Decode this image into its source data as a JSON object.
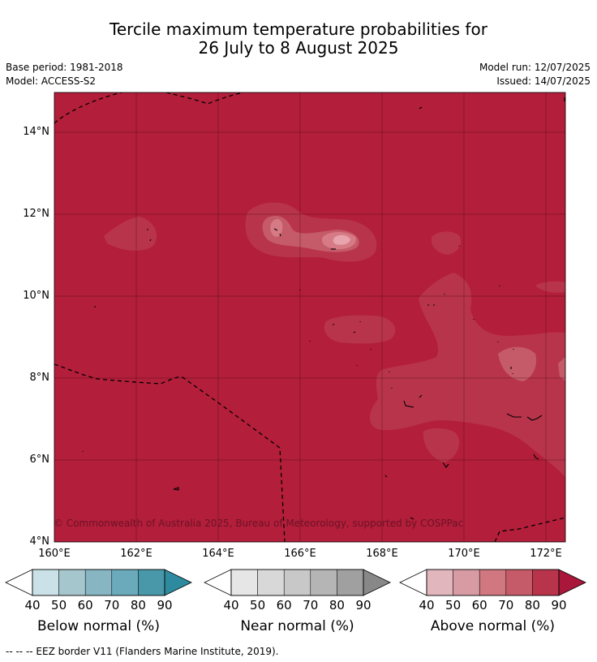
{
  "header": {
    "title_line1": "Tercile maximum temperature probabilities for",
    "title_line2": "26 July to 8 August 2025",
    "base_period": "Base period: 1981-2018",
    "model": "Model: ACCESS-S2",
    "model_run": "Model run: 12/07/2025",
    "issued": "Issued: 14/07/2025"
  },
  "map": {
    "lat_ticks": [
      "14°N",
      "12°N",
      "10°N",
      "8°N",
      "6°N",
      "4°N"
    ],
    "lon_ticks": [
      "160°E",
      "162°E",
      "164°E",
      "166°E",
      "168°E",
      "170°E",
      "172°E"
    ],
    "copyright": "© Commonwealth of Australia 2025, Bureau of Meteorology, supported by COSPPac",
    "colors": {
      "background_90plus": "#b31e3a",
      "band_80_90": "#b8344b",
      "band_70_80": "#c55a68",
      "band_60_70": "#d67b86",
      "band_50_60": "#e7a4ac"
    }
  },
  "colorbars": [
    {
      "title": "Below normal (%)",
      "ticks": [
        "40",
        "50",
        "60",
        "70",
        "80",
        "90"
      ],
      "colors": [
        "#ffffff",
        "#c9e1e7",
        "#a6c6cd",
        "#87b5c1",
        "#6aaabb",
        "#4898aa",
        "#2e8a9e"
      ]
    },
    {
      "title": "Near normal (%)",
      "ticks": [
        "40",
        "50",
        "60",
        "70",
        "80",
        "90"
      ],
      "colors": [
        "#ffffff",
        "#e6e6e6",
        "#d8d8d8",
        "#c8c8c8",
        "#b5b5b5",
        "#a0a0a0",
        "#888888"
      ]
    },
    {
      "title": "Above normal (%)",
      "ticks": [
        "40",
        "50",
        "60",
        "70",
        "80",
        "90"
      ],
      "colors": [
        "#ffffff",
        "#e2b6bd",
        "#d89aa3",
        "#d07780",
        "#c55a68",
        "#b8344b",
        "#a9173a"
      ]
    }
  ],
  "footer": {
    "eez_legend": "--  --  -- EEZ border V11 (Flanders Marine Institute, 2019)."
  }
}
